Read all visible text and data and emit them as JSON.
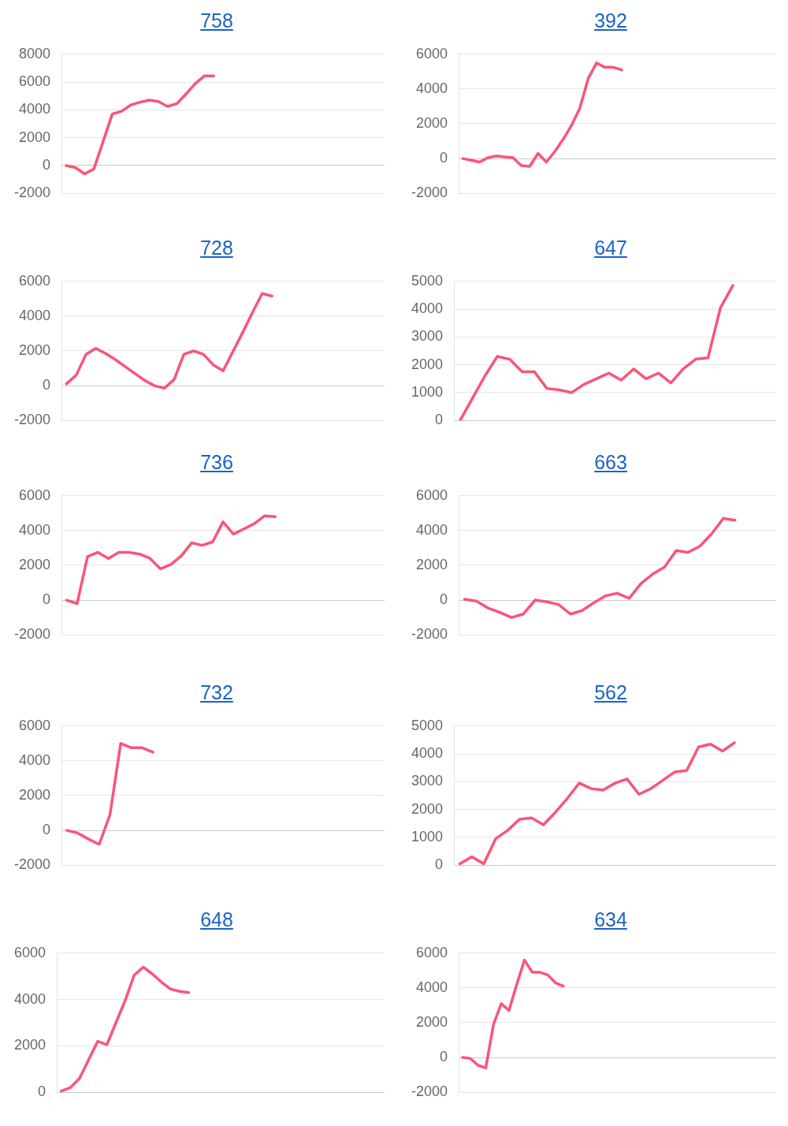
{
  "chart_data": [
    {
      "type": "line",
      "title": "758",
      "categories": [
        null,
        null,
        null,
        null,
        null,
        null,
        null,
        null,
        null,
        null,
        null,
        null,
        null,
        null,
        null,
        null,
        null,
        null,
        null,
        null,
        null,
        null,
        null,
        null,
        null,
        null,
        null,
        null,
        null,
        null,
        null,
        null,
        null,
        null,
        null
      ],
      "values": [
        0,
        -150,
        -600,
        -250,
        1700,
        3700,
        3900,
        4350,
        4550,
        4700,
        4600,
        4250,
        4450,
        5150,
        5900,
        6450,
        6450,
        null,
        null,
        null,
        null,
        null,
        null,
        null,
        null,
        null,
        null,
        null,
        null,
        null,
        null,
        null,
        null,
        null,
        null
      ],
      "color": "#fa5577",
      "ylim": [
        -2000,
        8000
      ],
      "yticks": [
        -2000,
        0,
        2000,
        4000,
        6000,
        8000
      ],
      "grid": "y",
      "tick_labels": "y"
    },
    {
      "type": "line",
      "title": "392",
      "categories": [
        null,
        null,
        null,
        null,
        null,
        null,
        null,
        null,
        null,
        null,
        null,
        null,
        null,
        null,
        null,
        null,
        null,
        null,
        null,
        null,
        null,
        null,
        null,
        null,
        null,
        null,
        null,
        null,
        null,
        null,
        null,
        null,
        null,
        null,
        null,
        null,
        null,
        null
      ],
      "values": [
        0,
        -100,
        -200,
        50,
        150,
        100,
        50,
        -400,
        -450,
        300,
        -200,
        400,
        1100,
        1900,
        2900,
        4600,
        5500,
        5250,
        5250,
        5100,
        null,
        null,
        null,
        null,
        null,
        null,
        null,
        null,
        null,
        null,
        null,
        null,
        null,
        null,
        null,
        null,
        null,
        null
      ],
      "color": "#fa5577",
      "ylim": [
        -2000,
        6000
      ],
      "yticks": [
        -2000,
        0,
        2000,
        4000,
        6000
      ],
      "grid": "y",
      "tick_labels": "y"
    },
    {
      "type": "line",
      "title": "728",
      "categories": [
        null,
        null,
        null,
        null,
        null,
        null,
        null,
        null,
        null,
        null,
        null,
        null,
        null,
        null,
        null,
        null,
        null,
        null,
        null,
        null,
        null,
        null,
        null,
        null,
        null,
        null,
        null,
        null,
        null,
        null,
        null,
        null,
        null
      ],
      "values": [
        100,
        600,
        1800,
        2150,
        1850,
        1500,
        1100,
        700,
        300,
        0,
        -150,
        350,
        1800,
        2000,
        1800,
        1200,
        850,
        1950,
        3050,
        4200,
        5300,
        5150,
        null,
        null,
        null,
        null,
        null,
        null,
        null,
        null,
        null,
        null,
        null
      ],
      "color": "#fa5577",
      "ylim": [
        -2000,
        6000
      ],
      "yticks": [
        -2000,
        0,
        2000,
        4000,
        6000
      ],
      "grid": "y",
      "tick_labels": "y"
    },
    {
      "type": "line",
      "title": "647",
      "categories": [
        null,
        null,
        null,
        null,
        null,
        null,
        null,
        null,
        null,
        null,
        null,
        null,
        null,
        null,
        null,
        null,
        null,
        null,
        null,
        null,
        null,
        null,
        null,
        null,
        null,
        null
      ],
      "values": [
        0,
        800,
        1600,
        2300,
        2200,
        1750,
        1750,
        1150,
        1100,
        1000,
        1300,
        1500,
        1700,
        1450,
        1850,
        1500,
        1700,
        1350,
        1850,
        2200,
        2250,
        4050,
        4850,
        null,
        null,
        null
      ],
      "color": "#fa5577",
      "ylim": [
        0,
        5000
      ],
      "yticks": [
        0,
        1000,
        2000,
        3000,
        4000,
        5000
      ],
      "grid": "y",
      "tick_labels": "y"
    },
    {
      "type": "line",
      "title": "736",
      "categories": [
        null,
        null,
        null,
        null,
        null,
        null,
        null,
        null,
        null,
        null,
        null,
        null,
        null,
        null,
        null,
        null,
        null,
        null,
        null,
        null,
        null,
        null,
        null,
        null,
        null,
        null,
        null,
        null,
        null,
        null,
        null
      ],
      "values": [
        0,
        -200,
        2500,
        2750,
        2400,
        2750,
        2750,
        2650,
        2400,
        1800,
        2050,
        2550,
        3300,
        3150,
        3350,
        4500,
        3800,
        4100,
        4400,
        4850,
        4800,
        null,
        null,
        null,
        null,
        null,
        null,
        null,
        null,
        null,
        null
      ],
      "color": "#fa5577",
      "ylim": [
        -2000,
        6000
      ],
      "yticks": [
        -2000,
        0,
        2000,
        4000,
        6000
      ],
      "grid": "y",
      "tick_labels": "y"
    },
    {
      "type": "line",
      "title": "663",
      "categories": [
        null,
        null,
        null,
        null,
        null,
        null,
        null,
        null,
        null,
        null,
        null,
        null,
        null,
        null,
        null,
        null,
        null,
        null,
        null,
        null,
        null,
        null,
        null,
        null,
        null,
        null,
        null
      ],
      "values": [
        50,
        -50,
        -450,
        -700,
        -1000,
        -800,
        0,
        -100,
        -250,
        -800,
        -600,
        -150,
        250,
        400,
        100,
        950,
        1500,
        1900,
        2850,
        2750,
        3100,
        3800,
        4700,
        4600,
        null,
        null,
        null
      ],
      "color": "#fa5577",
      "ylim": [
        -2000,
        6000
      ],
      "yticks": [
        -2000,
        0,
        2000,
        4000,
        6000
      ],
      "grid": "y",
      "tick_labels": "y"
    },
    {
      "type": "line",
      "title": "732",
      "categories": [
        null,
        null,
        null,
        null,
        null,
        null,
        null,
        null,
        null,
        null,
        null,
        null,
        null,
        null,
        null,
        null,
        null,
        null,
        null,
        null,
        null,
        null,
        null,
        null,
        null,
        null,
        null,
        null,
        null,
        null
      ],
      "values": [
        0,
        -150,
        -500,
        -800,
        900,
        5000,
        4750,
        4750,
        4500,
        null,
        null,
        null,
        null,
        null,
        null,
        null,
        null,
        null,
        null,
        null,
        null,
        null,
        null,
        null,
        null,
        null,
        null,
        null,
        null,
        null
      ],
      "color": "#fa5577",
      "ylim": [
        -2000,
        6000
      ],
      "yticks": [
        -2000,
        0,
        2000,
        4000,
        6000
      ],
      "grid": "y",
      "tick_labels": "y"
    },
    {
      "type": "line",
      "title": "562",
      "categories": [
        null,
        null,
        null,
        null,
        null,
        null,
        null,
        null,
        null,
        null,
        null,
        null,
        null,
        null,
        null,
        null,
        null,
        null,
        null,
        null,
        null,
        null,
        null,
        null,
        null,
        null,
        null
      ],
      "values": [
        50,
        300,
        50,
        950,
        1250,
        1650,
        1700,
        1450,
        1900,
        2400,
        2950,
        2750,
        2700,
        2950,
        3100,
        2550,
        2750,
        3050,
        3350,
        3400,
        4250,
        4350,
        4100,
        4400,
        null,
        null,
        null
      ],
      "color": "#fa5577",
      "ylim": [
        0,
        5000
      ],
      "yticks": [
        0,
        1000,
        2000,
        3000,
        4000,
        5000
      ],
      "grid": "y",
      "tick_labels": "y"
    },
    {
      "type": "line",
      "title": "648",
      "categories": [
        null,
        null,
        null,
        null,
        null,
        null,
        null,
        null,
        null,
        null,
        null,
        null,
        null,
        null,
        null,
        null,
        null,
        null,
        null,
        null,
        null,
        null,
        null,
        null,
        null,
        null,
        null,
        null,
        null,
        null,
        null,
        null,
        null,
        null,
        null,
        null
      ],
      "values": [
        50,
        200,
        600,
        1400,
        2200,
        2050,
        3000,
        3950,
        5050,
        5400,
        5100,
        4750,
        4450,
        4350,
        4300,
        null,
        null,
        null,
        null,
        null,
        null,
        null,
        null,
        null,
        null,
        null,
        null,
        null,
        null,
        null,
        null,
        null,
        null,
        null,
        null,
        null
      ],
      "color": "#fa5577",
      "ylim": [
        0,
        6000
      ],
      "yticks": [
        0,
        2000,
        4000,
        6000
      ],
      "grid": "y",
      "tick_labels": "y"
    },
    {
      "type": "line",
      "title": "634",
      "categories": [
        null,
        null,
        null,
        null,
        null,
        null,
        null,
        null,
        null,
        null,
        null,
        null,
        null,
        null,
        null,
        null,
        null,
        null,
        null,
        null,
        null,
        null,
        null,
        null,
        null,
        null,
        null,
        null,
        null,
        null,
        null,
        null,
        null,
        null,
        null,
        null,
        null,
        null,
        null,
        null,
        null
      ],
      "values": [
        0,
        -50,
        -450,
        -600,
        1900,
        3100,
        2700,
        4200,
        5600,
        4900,
        4900,
        4750,
        4300,
        4100,
        null,
        null,
        null,
        null,
        null,
        null,
        null,
        null,
        null,
        null,
        null,
        null,
        null,
        null,
        null,
        null,
        null,
        null,
        null,
        null,
        null,
        null,
        null,
        null,
        null,
        null,
        null
      ],
      "color": "#fa5577",
      "ylim": [
        -2000,
        6000
      ],
      "yticks": [
        -2000,
        0,
        2000,
        4000,
        6000
      ],
      "grid": "y",
      "tick_labels": "y"
    }
  ]
}
